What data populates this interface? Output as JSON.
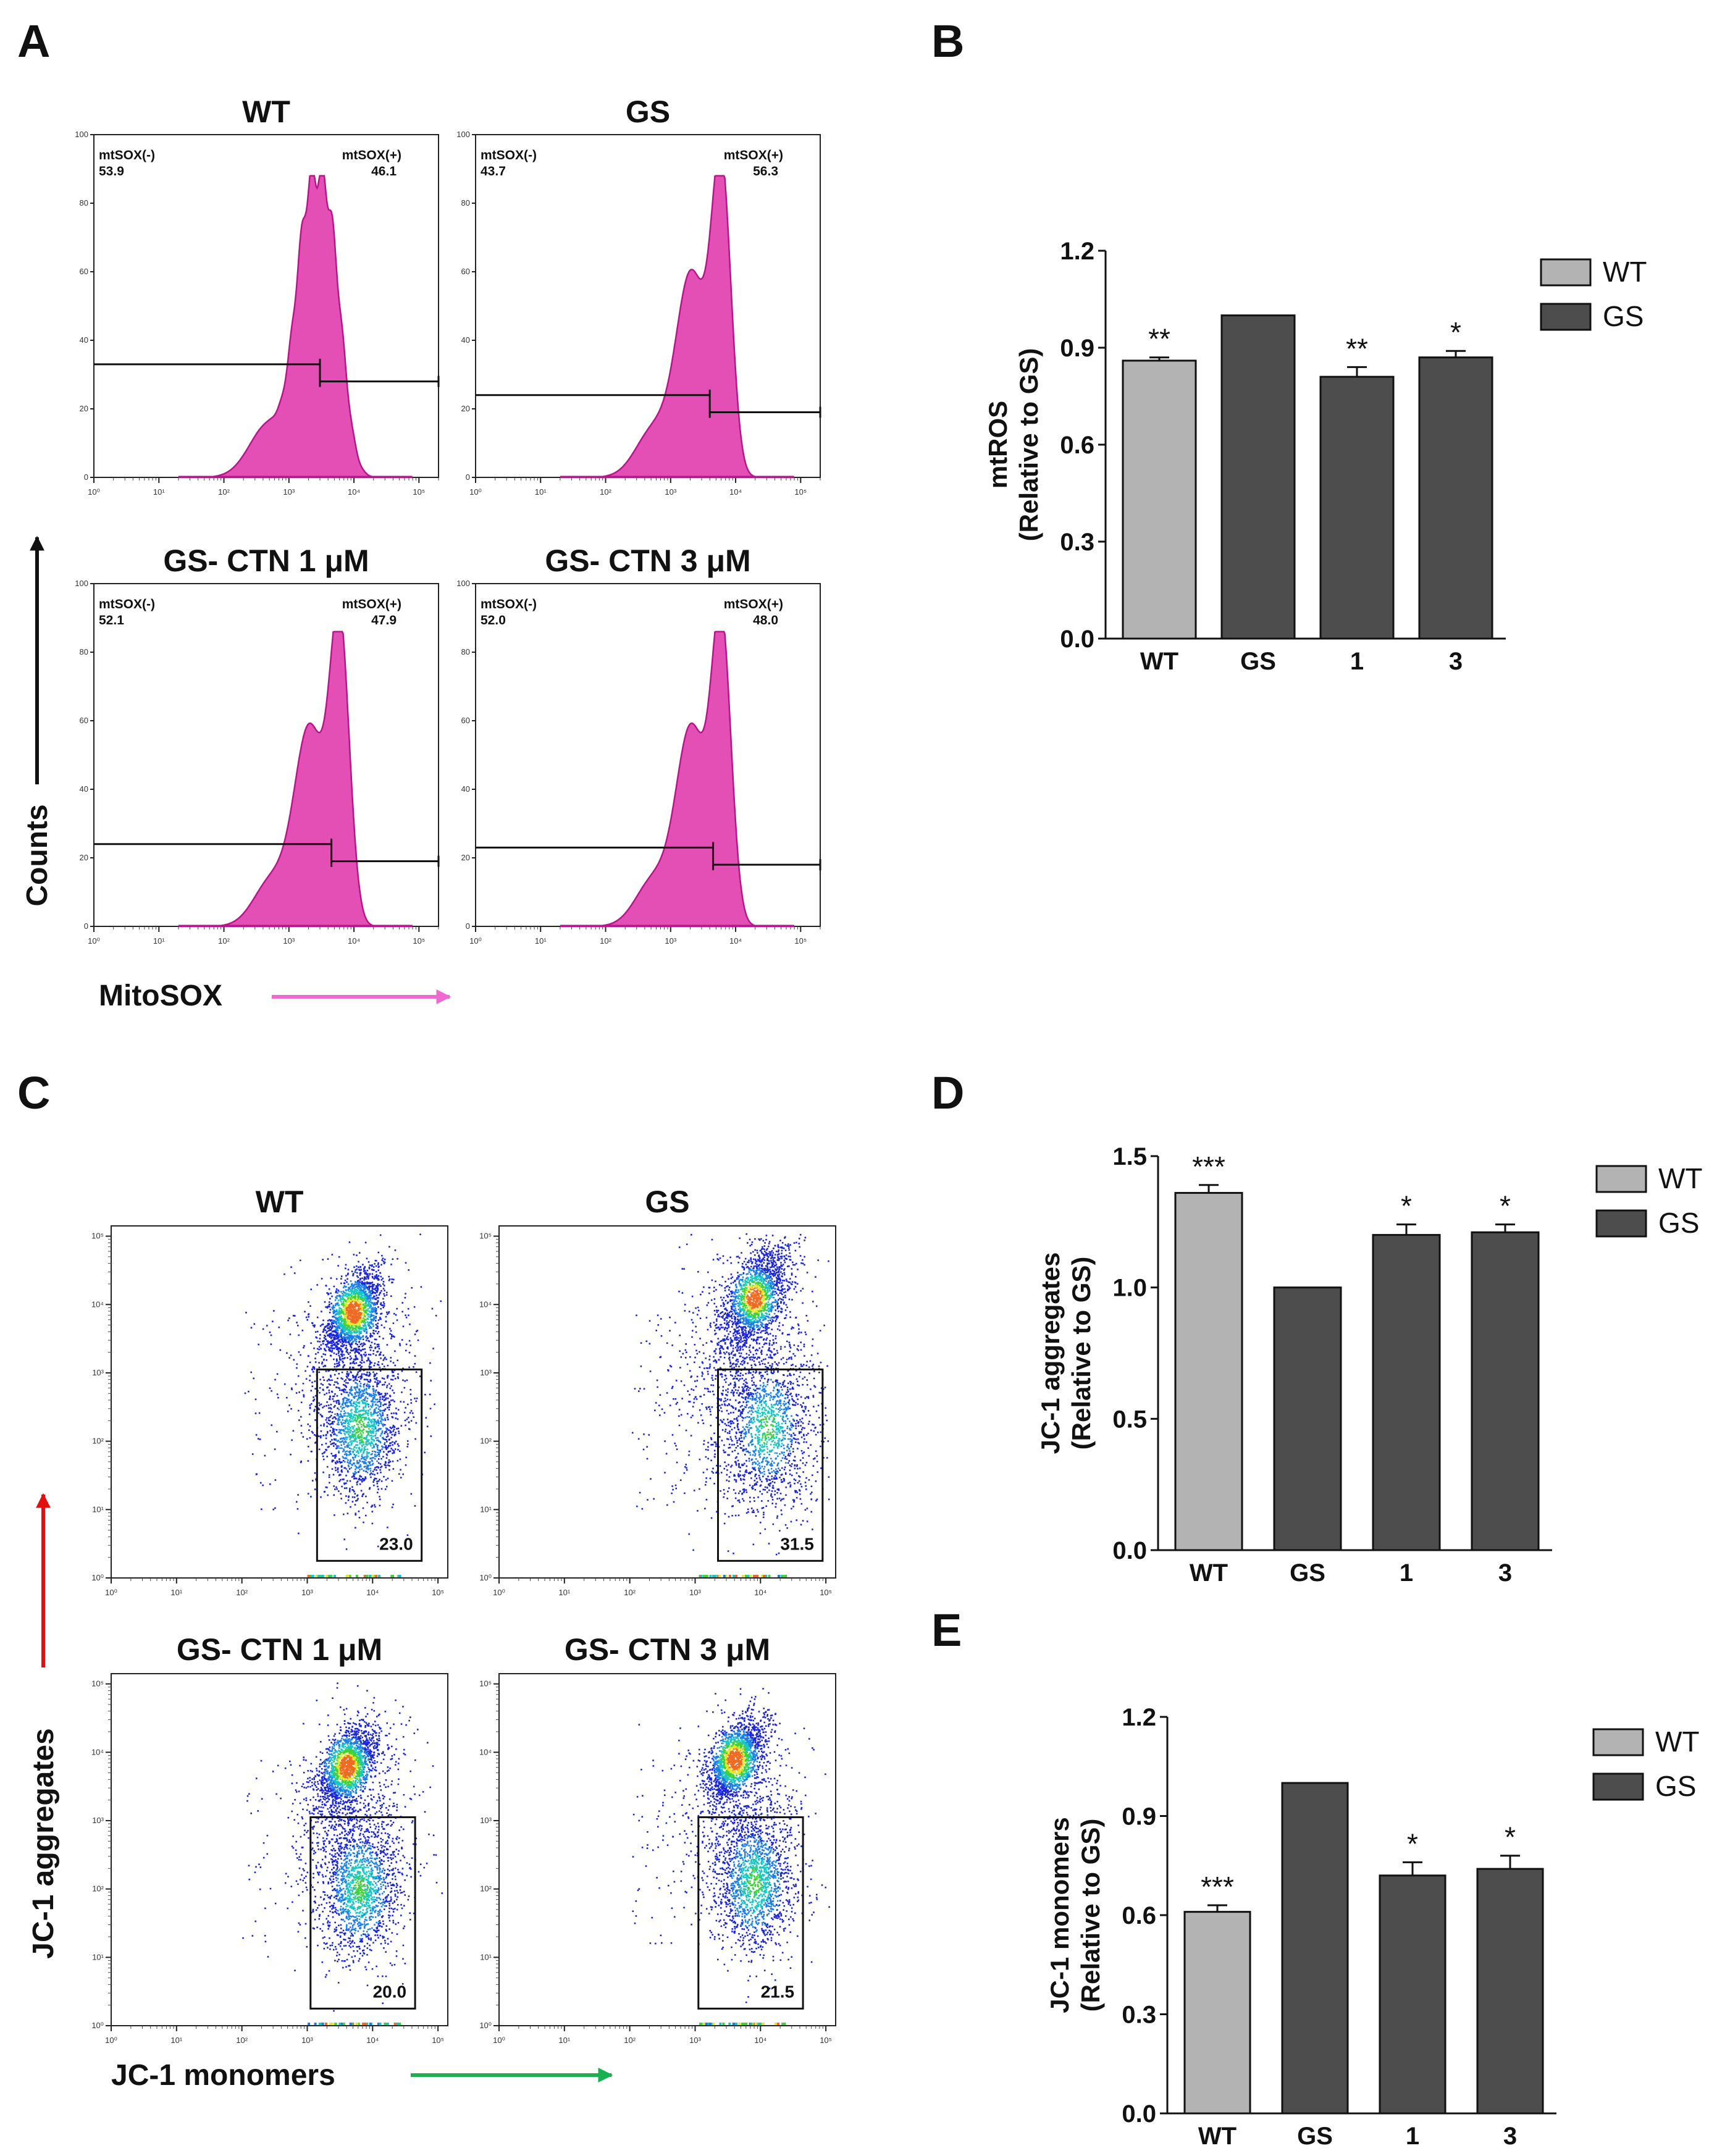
{
  "panel_letters": {
    "A": "A",
    "B": "B",
    "C": "C",
    "D": "D",
    "E": "E"
  },
  "colors": {
    "histogram_fill": "#e34fb5",
    "histogram_stroke": "#b5168a",
    "wt_bar": "#b3b3b3",
    "gs_bar": "#4d4d4d",
    "mitosox_arrow": "#ee6ad0",
    "aggregates_arrow": "#e01010",
    "monomers_arrow": "#18b050"
  },
  "panel_a": {
    "y_axis_label": "Counts",
    "x_axis_label": "MitoSOX",
    "y_ticks": [
      "0",
      "20",
      "40",
      "60",
      "80",
      "100"
    ],
    "x_ticks": [
      "10⁰",
      "10¹",
      "10²",
      "10³",
      "10⁴",
      "10⁵"
    ]
  },
  "panel_c": {
    "y_axis_label": "JC-1 aggregates",
    "x_axis_label": "JC-1 monomers",
    "y_ticks": [
      "10⁰",
      "10¹",
      "10²",
      "10³",
      "10⁴",
      "10⁵"
    ],
    "x_ticks": [
      "10⁰",
      "10¹",
      "10²",
      "10³",
      "10⁴",
      "10⁵"
    ]
  },
  "chart_data": [
    {
      "type": "histogram",
      "panel": "A",
      "x_scale": "log",
      "xlim": [
        1,
        200000
      ],
      "ylim": [
        0,
        100
      ],
      "xlabel": "MitoSOX",
      "ylabel": "Counts",
      "gate_neg_label": "mtSOX(-)",
      "gate_pos_label": "mtSOX(+)",
      "subplots": [
        {
          "title": "WT",
          "neg": "53.9",
          "pos": "46.1",
          "shape": "broad",
          "peak_height": 88,
          "gate_at": 3000,
          "gate_y_left": 33,
          "gate_y_right": 28
        },
        {
          "title": "GS",
          "neg": "43.7",
          "pos": "56.3",
          "shape": "double",
          "peak_height": 88,
          "gate_at": 4000,
          "gate_y_left": 24,
          "gate_y_right": 19
        },
        {
          "title": "GS- CTN 1 μM",
          "neg": "52.1",
          "pos": "47.9",
          "shape": "double",
          "peak_height": 86,
          "gate_at": 4500,
          "gate_y_left": 24,
          "gate_y_right": 19
        },
        {
          "title": "GS- CTN 3 μM",
          "neg": "52.0",
          "pos": "48.0",
          "shape": "double",
          "peak_height": 86,
          "gate_at": 4500,
          "gate_y_left": 23,
          "gate_y_right": 18
        }
      ]
    },
    {
      "type": "bar",
      "panel": "B",
      "title": "",
      "categories": [
        "WT",
        "GS",
        "1",
        "3"
      ],
      "values": [
        0.86,
        1.0,
        0.81,
        0.87
      ],
      "errors": [
        0.01,
        0.0,
        0.03,
        0.02
      ],
      "significance": [
        "**",
        "",
        "**",
        "*"
      ],
      "bar_groups": [
        "WT",
        "GS",
        "GS",
        "GS"
      ],
      "legend": [
        "WT",
        "GS"
      ],
      "ylabel_line1": "mtROS",
      "ylabel_line2": "(Relative to GS)",
      "ylim": [
        0,
        1.2
      ],
      "yticks": [
        "0.0",
        "0.3",
        "0.6",
        "0.9",
        "1.2"
      ]
    },
    {
      "type": "scatter",
      "panel": "C",
      "x_scale": "log",
      "y_scale": "log",
      "xlabel": "JC-1 monomers",
      "ylabel": "JC-1 aggregates",
      "subplots": [
        {
          "title": "WT",
          "gate_percent": "23.0",
          "upper_cluster": [
            3.7,
            3.9
          ],
          "lower_cluster": [
            3.8,
            2.2
          ],
          "spread": "normal"
        },
        {
          "title": "GS",
          "gate_percent": "31.5",
          "upper_cluster": [
            3.9,
            4.1
          ],
          "lower_cluster": [
            4.1,
            2.2
          ],
          "spread": "wide"
        },
        {
          "title": "GS- CTN 1 μM",
          "gate_percent": "20.0",
          "upper_cluster": [
            3.6,
            3.8
          ],
          "lower_cluster": [
            3.8,
            2.0
          ],
          "spread": "normal"
        },
        {
          "title": "GS- CTN 3 μM",
          "gate_percent": "21.5",
          "upper_cluster": [
            3.6,
            3.9
          ],
          "lower_cluster": [
            3.9,
            2.1
          ],
          "spread": "normal"
        }
      ]
    },
    {
      "type": "bar",
      "panel": "D",
      "title": "",
      "categories": [
        "WT",
        "GS",
        "1",
        "3"
      ],
      "values": [
        1.36,
        1.0,
        1.2,
        1.21
      ],
      "errors": [
        0.03,
        0.0,
        0.04,
        0.03
      ],
      "significance": [
        "***",
        "",
        "*",
        "*"
      ],
      "bar_groups": [
        "WT",
        "GS",
        "GS",
        "GS"
      ],
      "legend": [
        "WT",
        "GS"
      ],
      "ylabel_line1": "JC-1 aggregates",
      "ylabel_line2": "(Relative to GS)",
      "ylim": [
        0,
        1.5
      ],
      "yticks": [
        "0.0",
        "0.5",
        "1.0",
        "1.5"
      ]
    },
    {
      "type": "bar",
      "panel": "E",
      "title": "",
      "categories": [
        "WT",
        "GS",
        "1",
        "3"
      ],
      "values": [
        0.61,
        1.0,
        0.72,
        0.74
      ],
      "errors": [
        0.02,
        0.0,
        0.04,
        0.04
      ],
      "significance": [
        "***",
        "",
        "*",
        "*"
      ],
      "bar_groups": [
        "WT",
        "GS",
        "GS",
        "GS"
      ],
      "legend": [
        "WT",
        "GS"
      ],
      "ylabel_line1": "JC-1 monomers",
      "ylabel_line2": "(Relative to GS)",
      "ylim": [
        0,
        1.2
      ],
      "yticks": [
        "0.0",
        "0.3",
        "0.6",
        "0.9",
        "1.2"
      ]
    }
  ]
}
